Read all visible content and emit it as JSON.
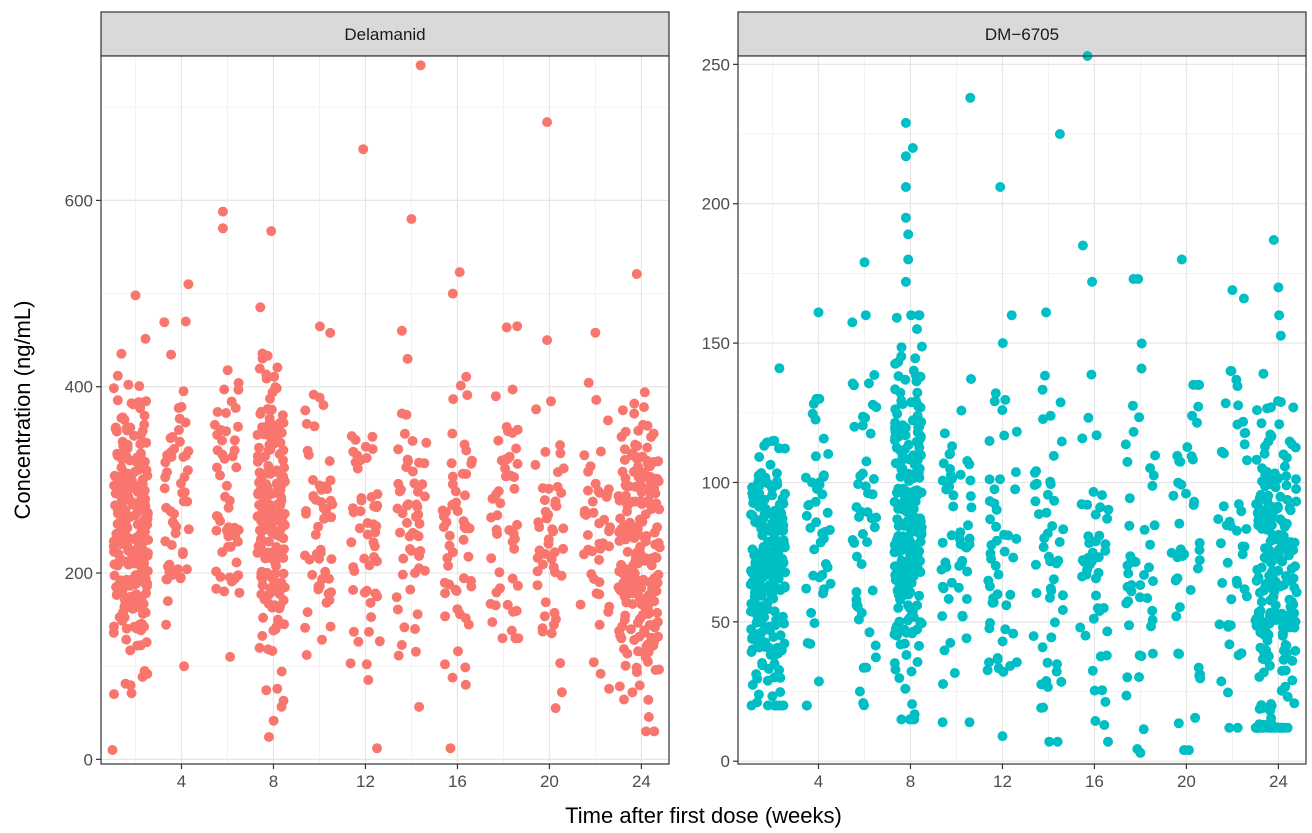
{
  "chart_data": {
    "type": "scatter",
    "title": "",
    "xlabel": "Time after first dose (weeks)",
    "ylabel": "Concentration (ng/mL)",
    "grid": true,
    "legend": "none",
    "panels": [
      {
        "strip_label": "Delamanid",
        "color": "#F8766D",
        "xlim": [
          0.5,
          25.2
        ],
        "ylim": [
          -5,
          755
        ],
        "xticks": [
          4,
          8,
          12,
          16,
          20,
          24
        ],
        "yticks": [
          0,
          200,
          400,
          600
        ],
        "notable_points": [
          [
            14.4,
            745
          ],
          [
            19.9,
            684
          ],
          [
            11.9,
            655
          ],
          [
            5.8,
            588
          ],
          [
            5.8,
            570
          ],
          [
            7.9,
            567
          ],
          [
            14.0,
            580
          ],
          [
            16.1,
            523
          ],
          [
            23.8,
            521
          ],
          [
            2.0,
            498
          ],
          [
            4.3,
            510
          ],
          [
            15.8,
            500
          ],
          [
            22.0,
            458
          ],
          [
            19.9,
            450
          ],
          [
            18.6,
            465
          ],
          [
            1.0,
            10
          ],
          [
            12.5,
            12
          ],
          [
            15.7,
            12
          ],
          [
            7.8,
            24
          ],
          [
            24.2,
            30
          ]
        ],
        "clusters": [
          {
            "x": 1.8,
            "spread": 0.75,
            "n": 260,
            "y_mean": 250,
            "y_sd": 70,
            "y_min": 70,
            "y_max": 470
          },
          {
            "x": 3.8,
            "spread": 0.55,
            "n": 55,
            "y_mean": 265,
            "y_sd": 75,
            "y_min": 100,
            "y_max": 470
          },
          {
            "x": 6.0,
            "spread": 0.55,
            "n": 55,
            "y_mean": 280,
            "y_sd": 80,
            "y_min": 110,
            "y_max": 460
          },
          {
            "x": 7.9,
            "spread": 0.6,
            "n": 210,
            "y_mean": 255,
            "y_sd": 75,
            "y_min": 40,
            "y_max": 490
          },
          {
            "x": 10.0,
            "spread": 0.65,
            "n": 55,
            "y_mean": 265,
            "y_sd": 80,
            "y_min": 70,
            "y_max": 490
          },
          {
            "x": 12.0,
            "spread": 0.65,
            "n": 50,
            "y_mean": 230,
            "y_sd": 70,
            "y_min": 60,
            "y_max": 460
          },
          {
            "x": 14.0,
            "spread": 0.65,
            "n": 55,
            "y_mean": 250,
            "y_sd": 80,
            "y_min": 40,
            "y_max": 460
          },
          {
            "x": 16.0,
            "spread": 0.65,
            "n": 55,
            "y_mean": 235,
            "y_sd": 75,
            "y_min": 80,
            "y_max": 470
          },
          {
            "x": 18.0,
            "spread": 0.65,
            "n": 50,
            "y_mean": 260,
            "y_sd": 80,
            "y_min": 130,
            "y_max": 470
          },
          {
            "x": 20.0,
            "spread": 0.65,
            "n": 50,
            "y_mean": 250,
            "y_sd": 85,
            "y_min": 55,
            "y_max": 440
          },
          {
            "x": 22.0,
            "spread": 0.65,
            "n": 45,
            "y_mean": 245,
            "y_sd": 85,
            "y_min": 70,
            "y_max": 420
          },
          {
            "x": 23.9,
            "spread": 0.9,
            "n": 230,
            "y_mean": 215,
            "y_sd": 75,
            "y_min": 30,
            "y_max": 460
          }
        ]
      },
      {
        "strip_label": "DM−6705",
        "color": "#00BFC4",
        "xlim": [
          0.5,
          25.2
        ],
        "ylim": [
          -1,
          253
        ],
        "xticks": [
          4,
          8,
          12,
          16,
          20,
          24
        ],
        "yticks": [
          0,
          50,
          100,
          150,
          200,
          250
        ],
        "notable_points": [
          [
            15.7,
            253
          ],
          [
            10.6,
            238
          ],
          [
            7.8,
            229
          ],
          [
            14.5,
            225
          ],
          [
            8.1,
            220
          ],
          [
            7.8,
            217
          ],
          [
            7.8,
            206
          ],
          [
            11.9,
            206
          ],
          [
            7.8,
            195
          ],
          [
            23.8,
            187
          ],
          [
            15.5,
            185
          ],
          [
            7.9,
            180
          ],
          [
            19.8,
            180
          ],
          [
            7.9,
            189
          ],
          [
            6.0,
            179
          ],
          [
            17.9,
            173
          ],
          [
            17.7,
            173
          ],
          [
            15.9,
            172
          ],
          [
            7.8,
            172
          ],
          [
            24.0,
            170
          ],
          [
            22.0,
            169
          ],
          [
            22.5,
            166
          ],
          [
            13.9,
            161
          ],
          [
            4.0,
            161
          ],
          [
            12.4,
            160
          ],
          [
            2.3,
            141
          ],
          [
            18.0,
            3
          ],
          [
            19.9,
            4
          ],
          [
            14.4,
            7
          ],
          [
            12.0,
            9
          ]
        ],
        "clusters": [
          {
            "x": 1.8,
            "spread": 0.75,
            "n": 240,
            "y_mean": 65,
            "y_sd": 22,
            "y_min": 20,
            "y_max": 115
          },
          {
            "x": 4.0,
            "spread": 0.55,
            "n": 45,
            "y_mean": 85,
            "y_sd": 28,
            "y_min": 20,
            "y_max": 130
          },
          {
            "x": 6.0,
            "spread": 0.55,
            "n": 50,
            "y_mean": 95,
            "y_sd": 35,
            "y_min": 15,
            "y_max": 160
          },
          {
            "x": 7.9,
            "spread": 0.6,
            "n": 240,
            "y_mean": 85,
            "y_sd": 32,
            "y_min": 15,
            "y_max": 160
          },
          {
            "x": 10.0,
            "spread": 0.65,
            "n": 55,
            "y_mean": 75,
            "y_sd": 32,
            "y_min": 14,
            "y_max": 150
          },
          {
            "x": 12.0,
            "spread": 0.65,
            "n": 50,
            "y_mean": 75,
            "y_sd": 35,
            "y_min": 9,
            "y_max": 150
          },
          {
            "x": 14.0,
            "spread": 0.65,
            "n": 50,
            "y_mean": 70,
            "y_sd": 35,
            "y_min": 7,
            "y_max": 140
          },
          {
            "x": 16.0,
            "spread": 0.65,
            "n": 50,
            "y_mean": 65,
            "y_sd": 35,
            "y_min": 7,
            "y_max": 140
          },
          {
            "x": 18.0,
            "spread": 0.65,
            "n": 45,
            "y_mean": 65,
            "y_sd": 35,
            "y_min": 3,
            "y_max": 150
          },
          {
            "x": 20.0,
            "spread": 0.65,
            "n": 45,
            "y_mean": 70,
            "y_sd": 38,
            "y_min": 4,
            "y_max": 135
          },
          {
            "x": 22.0,
            "spread": 0.65,
            "n": 45,
            "y_mean": 70,
            "y_sd": 40,
            "y_min": 12,
            "y_max": 140
          },
          {
            "x": 23.9,
            "spread": 0.9,
            "n": 230,
            "y_mean": 65,
            "y_sd": 35,
            "y_min": 12,
            "y_max": 160
          }
        ]
      }
    ]
  }
}
